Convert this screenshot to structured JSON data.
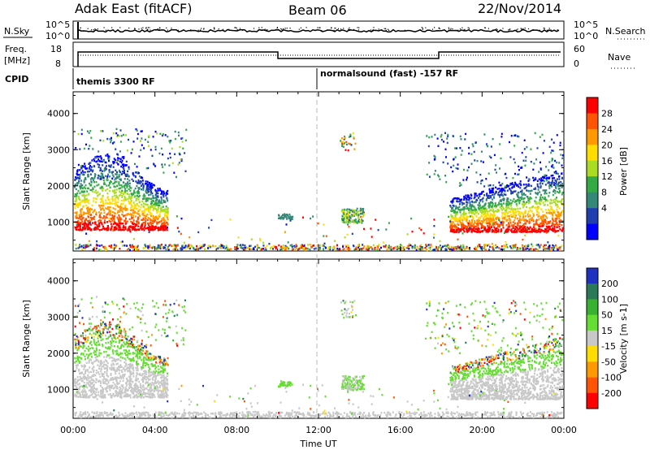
{
  "header": {
    "station": "Adak East (fitACF)",
    "beam": "Beam 06",
    "date": "22/Nov/2014"
  },
  "top_panels": {
    "nsky_label": "N.Sky",
    "nsky_ticks": [
      "10^5",
      "10^0"
    ],
    "nsearch_label": "N.Search",
    "nsearch_ticks": [
      "10^5",
      "10^0"
    ],
    "freq_label": "Freq.",
    "freq_unit": "[MHz]",
    "freq_ticks": [
      "18",
      "8"
    ],
    "nave_label": "Nave",
    "nave_ticks": [
      "60",
      "0"
    ],
    "cpid_label": "CPID",
    "cpid_segments": [
      "themis 3300 RF",
      "normalsound (fast) -157 RF"
    ]
  },
  "chart_data": [
    {
      "type": "heatmap",
      "title": "",
      "ylabel": "Slant Range [km]",
      "xlabel": "",
      "ylim": [
        200,
        4600
      ],
      "x_ticks": [
        "00:00",
        "04:00",
        "08:00",
        "12:00",
        "16:00",
        "20:00",
        "00:00"
      ],
      "y_ticks": [
        1000,
        2000,
        3000,
        4000
      ],
      "colorbar": {
        "label": "Power [dB]",
        "ticks": [
          "28",
          "24",
          "20",
          "16",
          "12",
          "8",
          "4"
        ],
        "colors": [
          "#ff0000",
          "#ff5500",
          "#ff9900",
          "#ffdd00",
          "#aadd22",
          "#33aa44",
          "#338877",
          "#1f3fb0",
          "#0000ff"
        ]
      }
    },
    {
      "type": "heatmap",
      "title": "",
      "ylabel": "Slant Range [km]",
      "xlabel": "Time UT",
      "ylim": [
        200,
        4600
      ],
      "x_ticks": [
        "00:00",
        "04:00",
        "08:00",
        "12:00",
        "16:00",
        "20:00",
        "00:00"
      ],
      "y_ticks": [
        1000,
        2000,
        3000,
        4000
      ],
      "colorbar": {
        "label": "Velocity [m s-1]",
        "ticks": [
          "200",
          "100",
          "50",
          "15",
          "-15",
          "-50",
          "-100",
          "-200"
        ],
        "colors": [
          "#2030c0",
          "#2a7a5a",
          "#38b030",
          "#66dd33",
          "#c8c8c8",
          "#ffdd00",
          "#ff9900",
          "#ff5500",
          "#ff0000"
        ]
      }
    }
  ]
}
